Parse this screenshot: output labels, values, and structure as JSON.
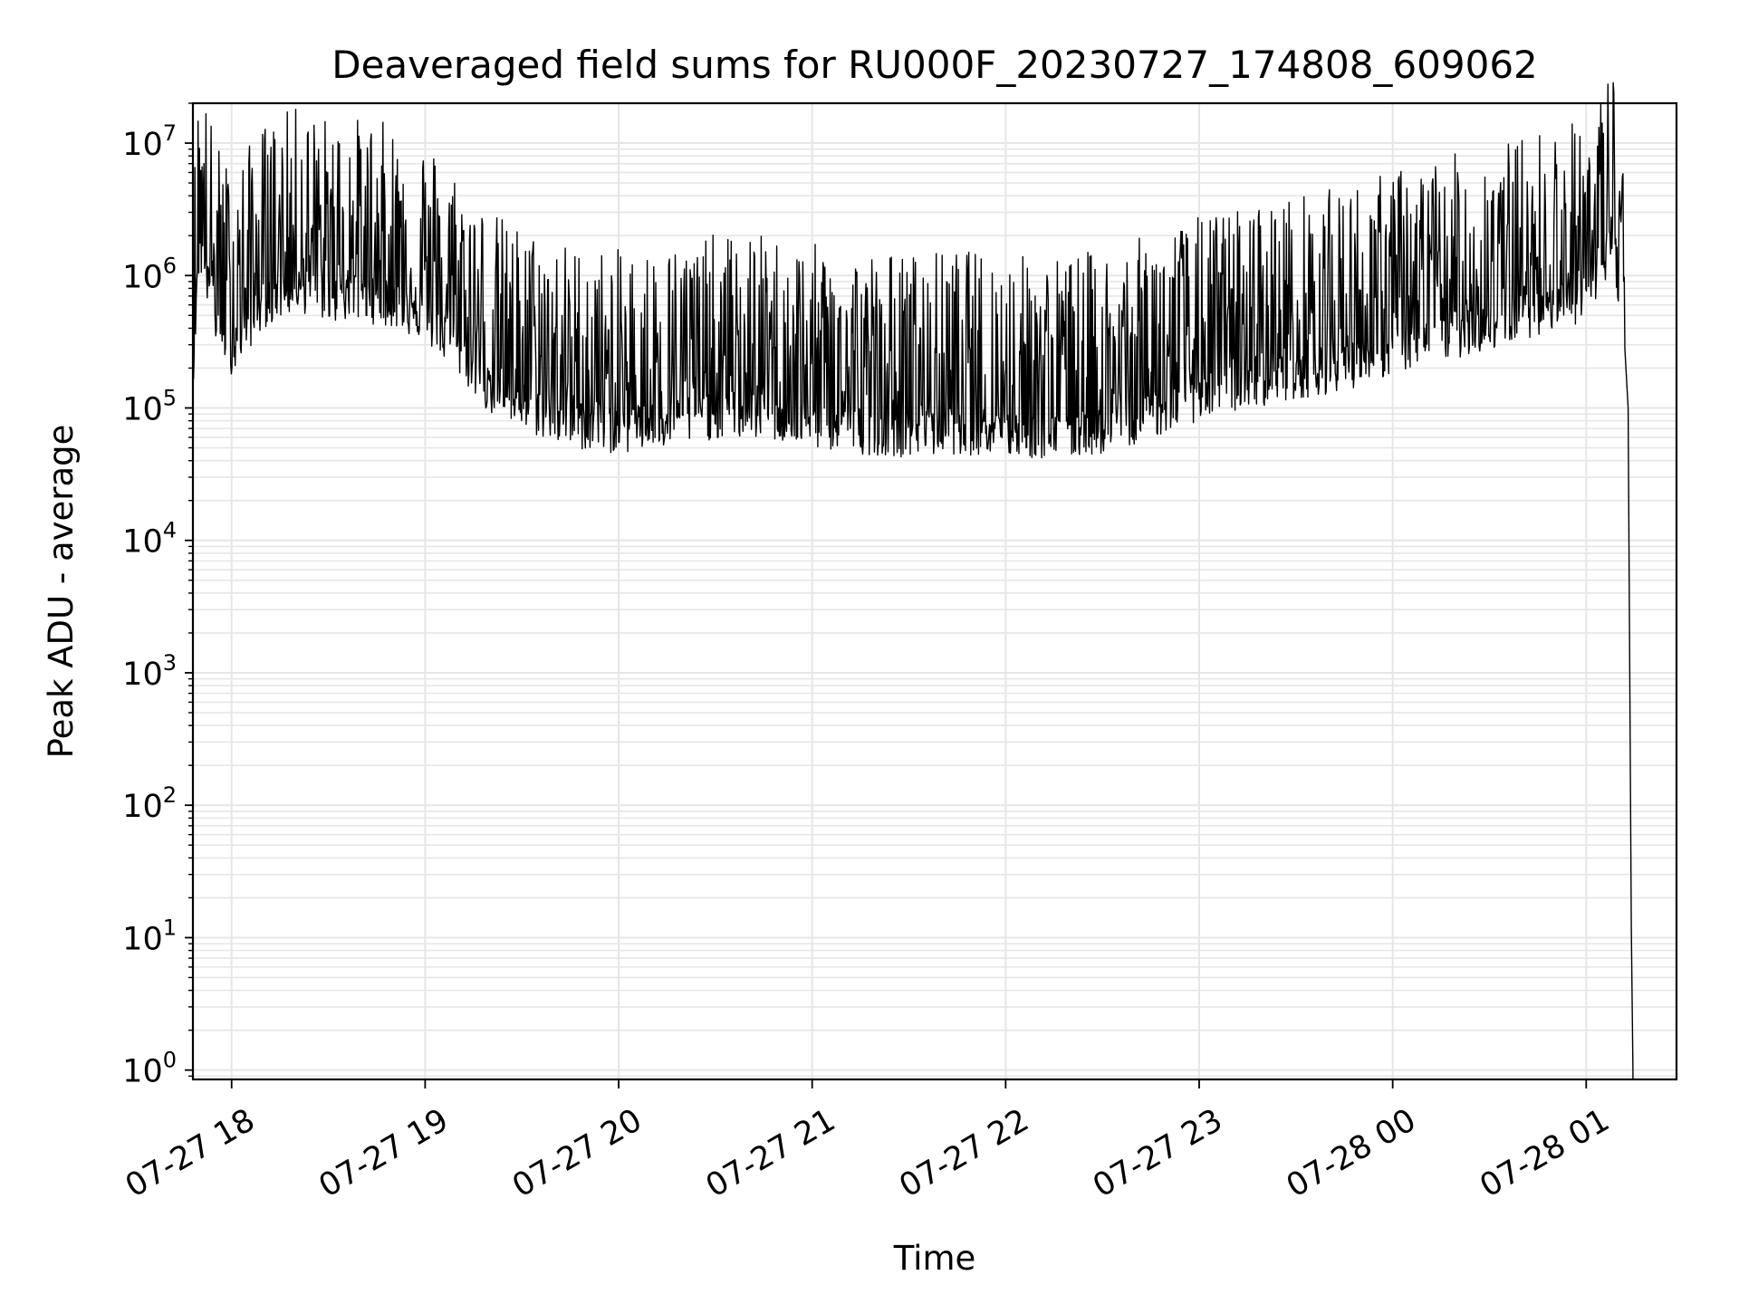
{
  "chart_data": {
    "type": "line",
    "title": "Deaveraged field sums for RU000F_20230727_174808_609062",
    "xlabel": "Time",
    "ylabel": "Peak ADU - average",
    "yscale": "log",
    "ylim": [
      0.85,
      20000000
    ],
    "xlim": [
      "2023-07-27 17:48",
      "2023-07-28 01:28"
    ],
    "grid": true,
    "series_color": "#000000",
    "grid_color": "#e6e6e6",
    "x_tick_labels": [
      "07-27 18",
      "07-27 19",
      "07-27 20",
      "07-27 21",
      "07-27 22",
      "07-27 23",
      "07-28 00",
      "07-28 01"
    ],
    "y_tick_labels": [
      {
        "base": "10",
        "exp": "0"
      },
      {
        "base": "10",
        "exp": "1"
      },
      {
        "base": "10",
        "exp": "2"
      },
      {
        "base": "10",
        "exp": "3"
      },
      {
        "base": "10",
        "exp": "4"
      },
      {
        "base": "10",
        "exp": "5"
      },
      {
        "base": "10",
        "exp": "6"
      },
      {
        "base": "10",
        "exp": "7"
      }
    ],
    "series": [
      {
        "x": [
          "2023-07-27 17:48",
          "2023-07-27 17:50",
          "2023-07-27 17:55",
          "2023-07-27 18:00",
          "2023-07-27 18:10",
          "2023-07-27 18:20",
          "2023-07-27 18:30",
          "2023-07-27 18:40",
          "2023-07-27 18:50",
          "2023-07-27 19:00",
          "2023-07-27 19:10",
          "2023-07-27 19:20",
          "2023-07-27 19:30",
          "2023-07-27 19:45",
          "2023-07-27 20:00",
          "2023-07-27 20:15",
          "2023-07-27 20:30",
          "2023-07-27 20:45",
          "2023-07-27 21:00",
          "2023-07-27 21:15",
          "2023-07-27 21:30",
          "2023-07-27 21:45",
          "2023-07-27 22:00",
          "2023-07-27 22:15",
          "2023-07-27 22:30",
          "2023-07-27 22:45",
          "2023-07-27 23:00",
          "2023-07-27 23:15",
          "2023-07-27 23:30",
          "2023-07-27 23:45",
          "2023-07-28 00:00",
          "2023-07-28 00:15",
          "2023-07-28 00:30",
          "2023-07-28 00:45",
          "2023-07-28 01:00",
          "2023-07-28 01:05",
          "2023-07-28 01:08",
          "2023-07-28 01:10",
          "2023-07-28 01:12",
          "2023-07-28 01:13",
          "2023-07-28 01:14",
          "2023-07-28 01:14:30"
        ],
        "y": [
          300000,
          2500000,
          700000,
          400000,
          900000,
          1200000,
          1000000,
          1000000,
          900000,
          700000,
          400000,
          200000,
          150000,
          110000,
          100000,
          110000,
          130000,
          130000,
          110000,
          100000,
          95000,
          100000,
          95000,
          90000,
          100000,
          130000,
          180000,
          220000,
          260000,
          300000,
          400000,
          500000,
          600000,
          800000,
          1000000,
          1500000,
          3000000,
          1000000,
          400000,
          100000,
          12,
          1
        ]
      }
    ]
  }
}
